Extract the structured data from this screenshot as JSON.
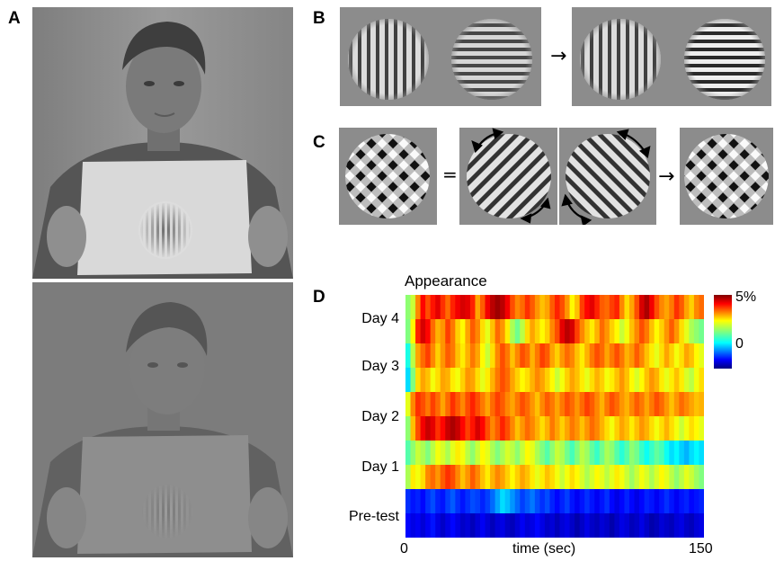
{
  "panels": {
    "a": "A",
    "b": "B",
    "c": "C",
    "d": "D"
  },
  "symbols": {
    "arrow": "→",
    "equals": "="
  },
  "colors": {
    "stimulus_bg": "#8c8c8c",
    "photo_bg": "#8a8a8a"
  },
  "chart_data": {
    "type": "heatmap",
    "title": "Appearance",
    "xlabel": "time (sec)",
    "x_ticks": [
      "0",
      "150"
    ],
    "xlim": [
      0,
      150
    ],
    "row_labels": [
      "Day 4",
      "Day 3",
      "Day 2",
      "Day 1",
      "Pre-test"
    ],
    "rows_per_day": 2,
    "colorbar": {
      "max_label": "5%",
      "mid_label": "0",
      "range": [
        -2,
        5
      ],
      "colormap": "jet"
    },
    "columns": 60,
    "values": [
      [
        1.6,
        2.0,
        3.2,
        4.1,
        3.6,
        4.0,
        4.3,
        3.8,
        3.4,
        3.9,
        4.2,
        4.4,
        4.3,
        3.9,
        3.0,
        3.5,
        4.2,
        4.6,
        4.8,
        4.6,
        4.2,
        3.6,
        3.2,
        3.4,
        3.8,
        3.5,
        3.1,
        2.8,
        3.0,
        3.5,
        3.9,
        3.6,
        3.1,
        2.4,
        2.8,
        3.7,
        4.1,
        4.3,
        3.9,
        3.5,
        3.4,
        3.7,
        3.9,
        3.2,
        2.6,
        3.0,
        3.6,
        4.4,
        4.7,
        4.2,
        3.6,
        3.2,
        3.0,
        3.3,
        3.8,
        3.5,
        3.0,
        2.7,
        3.2,
        3.4
      ],
      [
        1.5,
        2.4,
        3.9,
        4.4,
        4.1,
        3.4,
        2.9,
        3.1,
        3.7,
        3.3,
        2.7,
        2.4,
        3.0,
        3.5,
        3.2,
        2.6,
        2.2,
        2.8,
        3.4,
        3.1,
        2.5,
        1.8,
        1.4,
        1.9,
        2.6,
        3.0,
        2.7,
        2.4,
        2.7,
        3.2,
        3.6,
        4.3,
        4.6,
        4.4,
        3.7,
        3.2,
        2.8,
        2.5,
        2.9,
        3.4,
        3.1,
        2.7,
        2.4,
        2.0,
        2.3,
        2.8,
        3.2,
        3.6,
        3.3,
        2.8,
        2.4,
        2.7,
        3.1,
        3.5,
        3.1,
        2.6,
        2.2,
        1.8,
        1.6,
        1.4
      ],
      [
        0.8,
        1.9,
        3.0,
        3.4,
        3.7,
        3.2,
        2.7,
        3.1,
        3.5,
        3.3,
        2.8,
        2.5,
        2.9,
        3.3,
        3.0,
        2.4,
        2.0,
        2.6,
        3.2,
        3.6,
        3.3,
        2.8,
        3.2,
        3.6,
        3.4,
        2.9,
        3.3,
        3.7,
        3.5,
        3.0,
        2.7,
        3.1,
        3.4,
        3.2,
        2.8,
        2.5,
        2.9,
        3.3,
        3.6,
        3.4,
        3.0,
        3.3,
        3.6,
        3.3,
        2.9,
        3.1,
        3.5,
        3.2,
        2.8,
        2.5,
        2.2,
        2.6,
        3.0,
        2.7,
        2.3,
        2.6,
        3.0,
        2.8,
        2.4,
        2.2
      ],
      [
        0.4,
        1.5,
        2.6,
        3.0,
        2.8,
        2.3,
        2.6,
        3.0,
        2.9,
        2.5,
        2.3,
        2.7,
        3.1,
        3.0,
        2.6,
        2.2,
        2.5,
        2.9,
        3.3,
        3.6,
        3.4,
        3.0,
        2.7,
        2.4,
        2.6,
        2.9,
        3.2,
        3.0,
        2.7,
        2.4,
        2.0,
        2.3,
        2.7,
        3.0,
        2.8,
        2.5,
        2.2,
        2.6,
        2.9,
        2.7,
        2.3,
        2.5,
        2.8,
        3.1,
        2.8,
        2.4,
        2.1,
        2.4,
        2.8,
        3.1,
        2.9,
        2.5,
        2.2,
        2.5,
        2.8,
        2.5,
        2.1,
        1.9,
        2.3,
        2.6
      ],
      [
        2.2,
        3.2,
        3.8,
        3.6,
        3.3,
        3.7,
        3.4,
        3.0,
        3.4,
        3.8,
        3.5,
        3.2,
        3.6,
        3.9,
        3.6,
        3.3,
        3.0,
        3.4,
        3.7,
        3.5,
        3.2,
        3.0,
        3.3,
        3.6,
        3.4,
        3.1,
        2.8,
        3.2,
        3.5,
        3.3,
        3.0,
        3.3,
        3.6,
        3.4,
        3.1,
        3.4,
        3.7,
        3.5,
        3.2,
        2.9,
        3.3,
        3.6,
        3.4,
        3.1,
        2.9,
        3.2,
        3.5,
        3.3,
        3.0,
        3.3,
        3.6,
        3.4,
        3.1,
        2.8,
        3.1,
        3.4,
        3.2,
        3.0,
        2.8,
        2.9
      ],
      [
        1.6,
        2.8,
        3.6,
        4.2,
        4.5,
        4.3,
        3.8,
        4.1,
        4.5,
        4.7,
        4.5,
        4.1,
        3.7,
        4.0,
        4.4,
        4.1,
        3.6,
        3.2,
        3.5,
        3.9,
        3.6,
        3.2,
        2.8,
        3.1,
        3.4,
        3.2,
        2.9,
        2.6,
        2.9,
        3.3,
        3.0,
        2.7,
        3.0,
        3.3,
        3.1,
        2.8,
        3.1,
        3.4,
        3.2,
        2.9,
        2.6,
        2.3,
        2.7,
        3.0,
        2.8,
        2.5,
        2.8,
        3.1,
        2.9,
        2.6,
        2.3,
        2.6,
        2.9,
        2.6,
        2.3,
        2.0,
        2.3,
        2.6,
        2.4,
        2.2
      ],
      [
        1.2,
        1.6,
        2.0,
        1.8,
        1.5,
        1.9,
        2.3,
        2.1,
        1.8,
        2.2,
        2.5,
        2.3,
        1.9,
        1.6,
        2.0,
        2.4,
        2.2,
        1.8,
        1.5,
        1.8,
        2.1,
        1.9,
        1.6,
        2.0,
        2.4,
        2.2,
        1.8,
        1.5,
        1.2,
        1.6,
        2.0,
        1.8,
        1.4,
        1.1,
        1.5,
        1.9,
        1.7,
        1.3,
        1.0,
        1.4,
        1.8,
        1.6,
        1.2,
        0.9,
        1.2,
        1.6,
        1.4,
        1.0,
        0.7,
        1.0,
        1.3,
        1.1,
        0.7,
        0.4,
        0.6,
        0.3,
        0.1,
        0.4,
        0.6,
        0.4
      ],
      [
        1.8,
        2.5,
        2.3,
        2.6,
        3.2,
        3.4,
        3.1,
        3.5,
        3.8,
        3.6,
        3.2,
        2.8,
        3.1,
        3.5,
        3.2,
        2.8,
        2.5,
        2.9,
        3.2,
        3.0,
        2.7,
        2.4,
        2.7,
        3.0,
        2.8,
        2.5,
        2.2,
        2.5,
        2.8,
        2.6,
        2.3,
        2.0,
        2.3,
        2.6,
        2.4,
        2.1,
        1.8,
        2.1,
        2.4,
        2.2,
        1.9,
        2.2,
        2.5,
        2.3,
        2.0,
        1.7,
        2.0,
        2.3,
        2.1,
        1.8,
        2.1,
        2.4,
        2.2,
        1.9,
        1.6,
        1.9,
        2.2,
        2.0,
        1.7,
        1.5
      ],
      [
        -0.8,
        -1.0,
        -0.9,
        -1.1,
        -0.8,
        -0.6,
        -0.9,
        -1.0,
        -0.7,
        -0.5,
        -0.8,
        -1.0,
        -0.8,
        -0.6,
        -0.7,
        -0.9,
        -0.7,
        -0.4,
        0.0,
        0.4,
        0.2,
        -0.1,
        -0.4,
        -0.7,
        -0.5,
        -0.3,
        -0.6,
        -0.8,
        -0.6,
        -0.9,
        -1.1,
        -0.9,
        -0.7,
        -1.0,
        -1.2,
        -1.0,
        -0.8,
        -1.0,
        -1.2,
        -1.0,
        -0.8,
        -1.1,
        -1.3,
        -1.1,
        -0.9,
        -1.1,
        -1.3,
        -1.1,
        -0.9,
        -1.0,
        -1.2,
        -1.0,
        -0.8,
        -1.0,
        -1.2,
        -1.0,
        -0.9,
        -1.1,
        -1.0,
        -0.9
      ],
      [
        -1.1,
        -1.3,
        -1.2,
        -1.4,
        -1.2,
        -1.0,
        -1.3,
        -1.5,
        -1.3,
        -1.1,
        -1.3,
        -1.5,
        -1.4,
        -1.6,
        -1.4,
        -1.2,
        -1.4,
        -1.6,
        -1.4,
        -1.3,
        -1.5,
        -1.6,
        -1.4,
        -1.2,
        -1.4,
        -1.3,
        -1.1,
        -1.3,
        -1.5,
        -1.4,
        -1.6,
        -1.4,
        -1.3,
        -1.5,
        -1.7,
        -1.5,
        -1.3,
        -1.5,
        -1.6,
        -1.4,
        -1.5,
        -1.7,
        -1.5,
        -1.3,
        -1.4,
        -1.6,
        -1.5,
        -1.3,
        -1.5,
        -1.7,
        -1.6,
        -1.4,
        -1.5,
        -1.6,
        -1.4,
        -1.3,
        -1.5,
        -1.6,
        -1.4,
        -1.3
      ]
    ]
  }
}
